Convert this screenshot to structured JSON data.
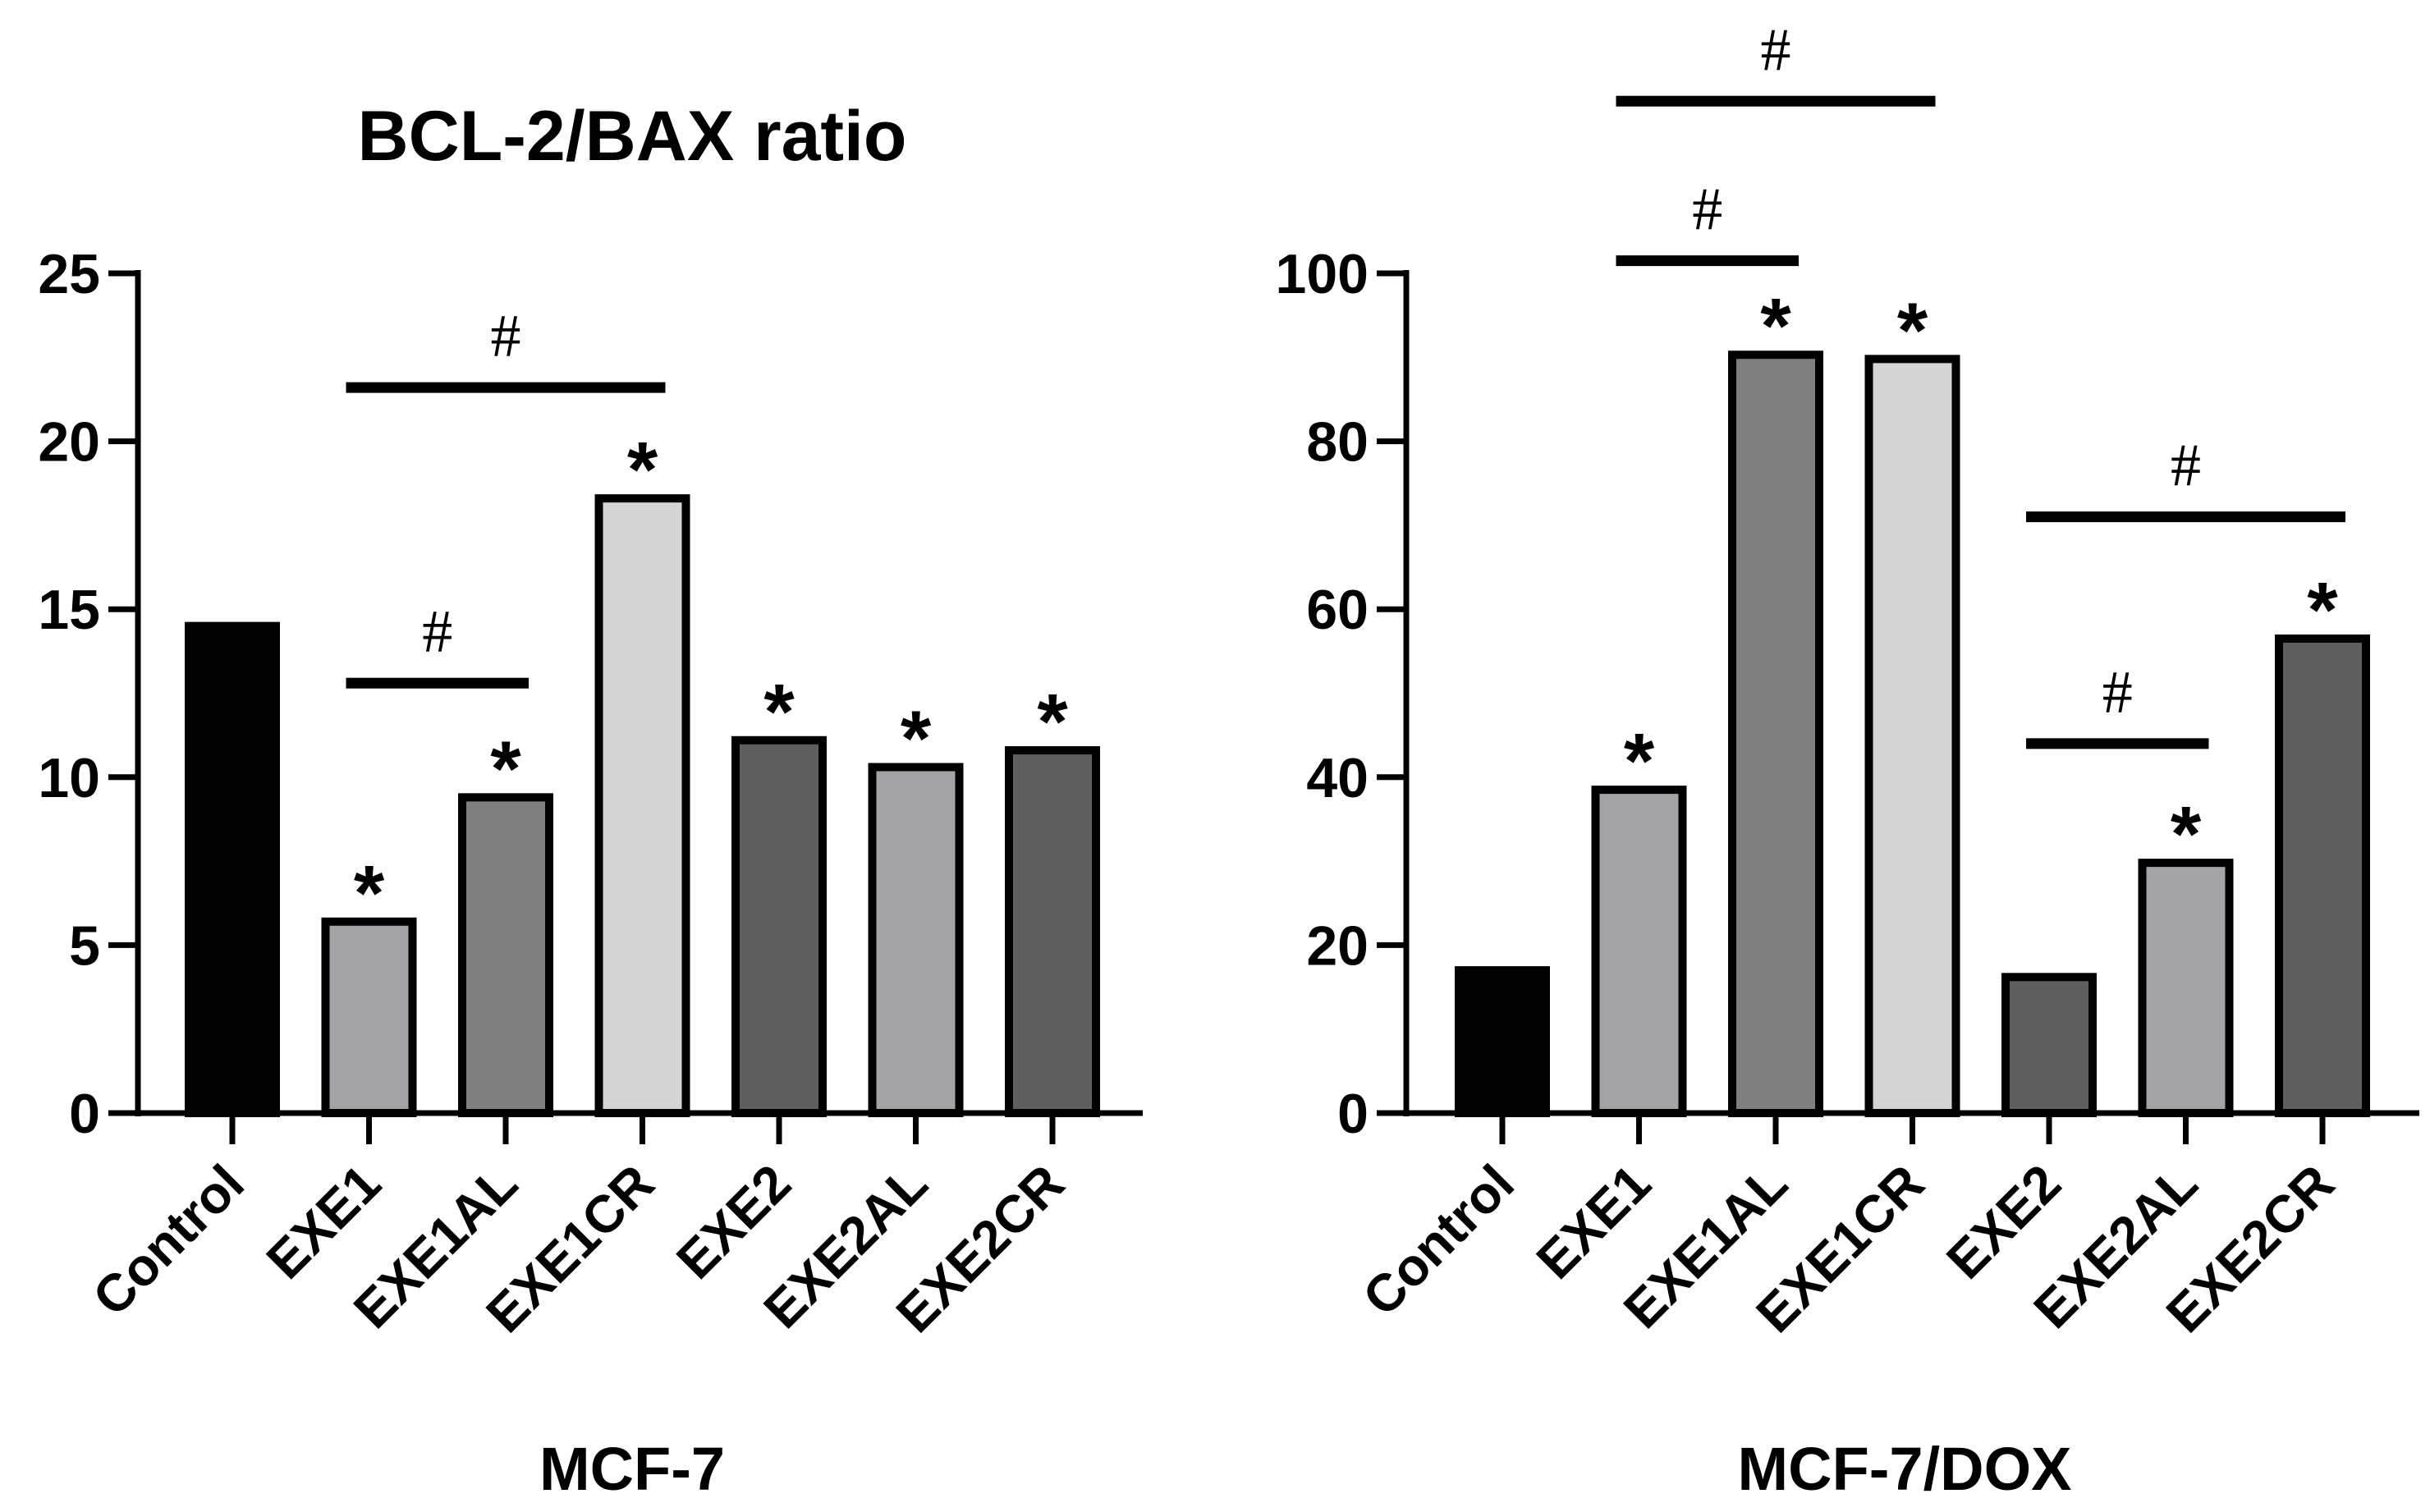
{
  "chart_data": [
    {
      "type": "bar",
      "title": "BCL-2/BAX ratio",
      "xlabel": "MCF-7",
      "ylabel": "",
      "ylim": [
        0,
        25
      ],
      "yticks": [
        0,
        5,
        10,
        15,
        20,
        25
      ],
      "categories": [
        "Control",
        "EXE1",
        "EXE1AL",
        "EXE1CR",
        "EXE2",
        "EXE2AL",
        "EXE2CR"
      ],
      "values": [
        14.5,
        5.7,
        9.4,
        18.3,
        11.1,
        10.3,
        10.8
      ],
      "bar_colors": [
        "#000000",
        "#a4a4a8",
        "#7f7f7f",
        "#d4d4d4",
        "#5f5f5f",
        "#a4a4a8",
        "#5f5f5f"
      ],
      "significance_stars": [
        "",
        "*",
        "*",
        "*",
        "*",
        "*",
        "*"
      ],
      "comparisons": [
        {
          "from": "EXE1",
          "to": "EXE1AL",
          "y": 12.8,
          "label": "#"
        },
        {
          "from": "EXE1",
          "to": "EXE1CR",
          "y": 21.6,
          "label": "#"
        }
      ]
    },
    {
      "type": "bar",
      "title": "",
      "xlabel": "MCF-7/DOX",
      "ylabel": "",
      "ylim": [
        0,
        100
      ],
      "yticks": [
        0,
        20,
        40,
        60,
        80,
        100
      ],
      "categories": [
        "Control",
        "EXE1",
        "EXE1AL",
        "EXE1CR",
        "EXE2",
        "EXE2AL",
        "EXE2CR"
      ],
      "values": [
        17,
        38.5,
        90.3,
        89.8,
        16.2,
        29.8,
        56.5
      ],
      "bar_colors": [
        "#000000",
        "#a4a4a8",
        "#7f7f7f",
        "#d4d4d4",
        "#5f5f5f",
        "#a4a4a8",
        "#5f5f5f"
      ],
      "significance_stars": [
        "",
        "*",
        "*",
        "*",
        "",
        "*",
        "*"
      ],
      "comparisons": [
        {
          "from": "EXE1",
          "to": "EXE1AL",
          "y": 101.5,
          "label": "#"
        },
        {
          "from": "EXE1",
          "to": "EXE1CR",
          "y": 120.5,
          "label": "#"
        },
        {
          "from": "EXE2",
          "to": "EXE2AL",
          "y": 44,
          "label": "#"
        },
        {
          "from": "EXE2",
          "to": "EXE2CR",
          "y": 71,
          "label": "#"
        }
      ]
    }
  ]
}
